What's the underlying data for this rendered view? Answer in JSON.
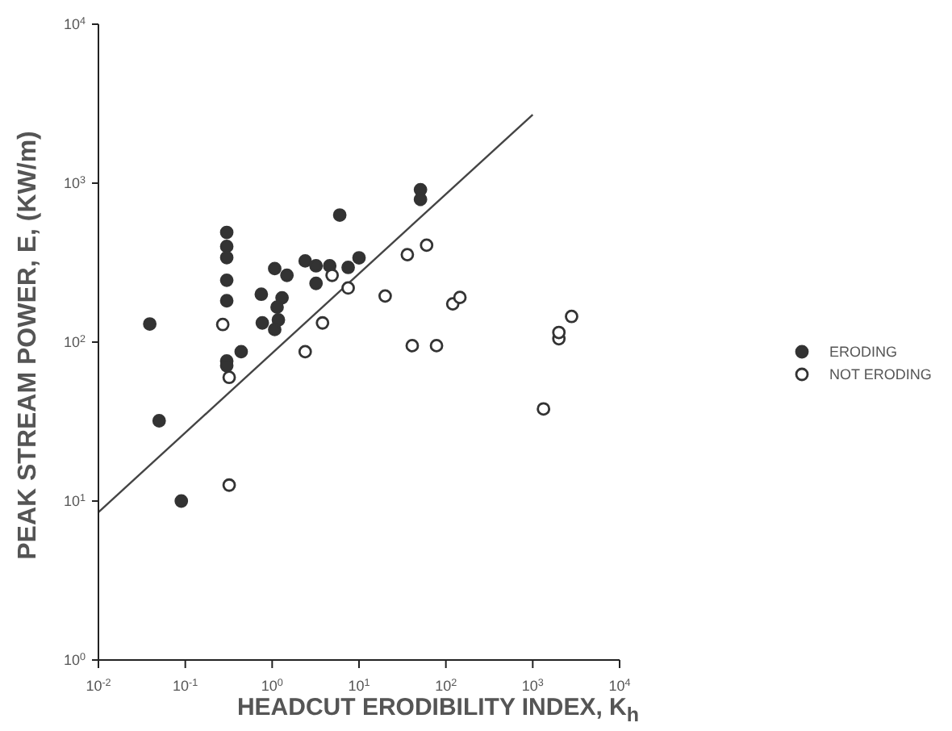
{
  "chart_data": {
    "type": "scatter",
    "xlabel": "HEADCUT ERODIBILITY INDEX, K$_{h}$",
    "ylabel": "PEAK STREAM POWER, E, (KW/m)",
    "log": "xy",
    "grid": false,
    "legend": "right",
    "marker": "circle",
    "xlim": [
      0.01,
      10000
    ],
    "ylim": [
      1,
      10000
    ],
    "xticks": [
      {
        "value": 0.01,
        "label": "10$^{-2}$"
      },
      {
        "value": 0.1,
        "label": "10$^{-1}$"
      },
      {
        "value": 1,
        "label": "10$^{0}$"
      },
      {
        "value": 10,
        "label": "10$^{1}$"
      },
      {
        "value": 100,
        "label": "10$^{2}$"
      },
      {
        "value": 1000,
        "label": "10$^{3}$"
      },
      {
        "value": 10000,
        "label": "10$^{4}$"
      }
    ],
    "yticks": [
      {
        "value": 1,
        "label": "10$^{0}$"
      },
      {
        "value": 10,
        "label": "10$^{1}$"
      },
      {
        "value": 100,
        "label": "10$^{2}$"
      },
      {
        "value": 1000,
        "label": "10$^{3}$"
      },
      {
        "value": 10000,
        "label": "10$^{4}$"
      }
    ],
    "series": [
      {
        "name": "ERODING",
        "color": "#333333",
        "x": [
          0.039,
          0.05,
          0.09,
          0.3,
          0.3,
          0.3,
          0.3,
          0.3,
          0.3,
          0.3,
          0.44,
          0.75,
          0.77,
          1.07,
          1.48,
          1.3,
          1.14,
          1.18,
          1.07,
          2.4,
          3.2,
          3.2,
          4.6,
          7.5,
          10,
          6,
          51,
          51
        ],
        "values": [
          130,
          32,
          10,
          490,
          400,
          340,
          245,
          182,
          76,
          71,
          87,
          200,
          132,
          290,
          263,
          190,
          166,
          138,
          120,
          324,
          302,
          234,
          302,
          295,
          339,
          630,
          910,
          790
        ]
      },
      {
        "name": "NOT ERODING",
        "color": "#333333",
        "x": [
          0.27,
          0.32,
          0.32,
          4.9,
          7.5,
          3.8,
          2.4,
          20,
          36,
          60,
          41,
          78,
          120,
          145,
          2000,
          2000,
          2800,
          1330
        ],
        "values": [
          129,
          60,
          12.6,
          263,
          219,
          132,
          87,
          195,
          355,
          407,
          95,
          95,
          174,
          191,
          105,
          115,
          145,
          38
        ]
      },
      {
        "type": "line",
        "color": "#444444",
        "marker": "none",
        "x": [
          0.01,
          1000
        ],
        "values": [
          8.5,
          2700
        ]
      }
    ]
  }
}
